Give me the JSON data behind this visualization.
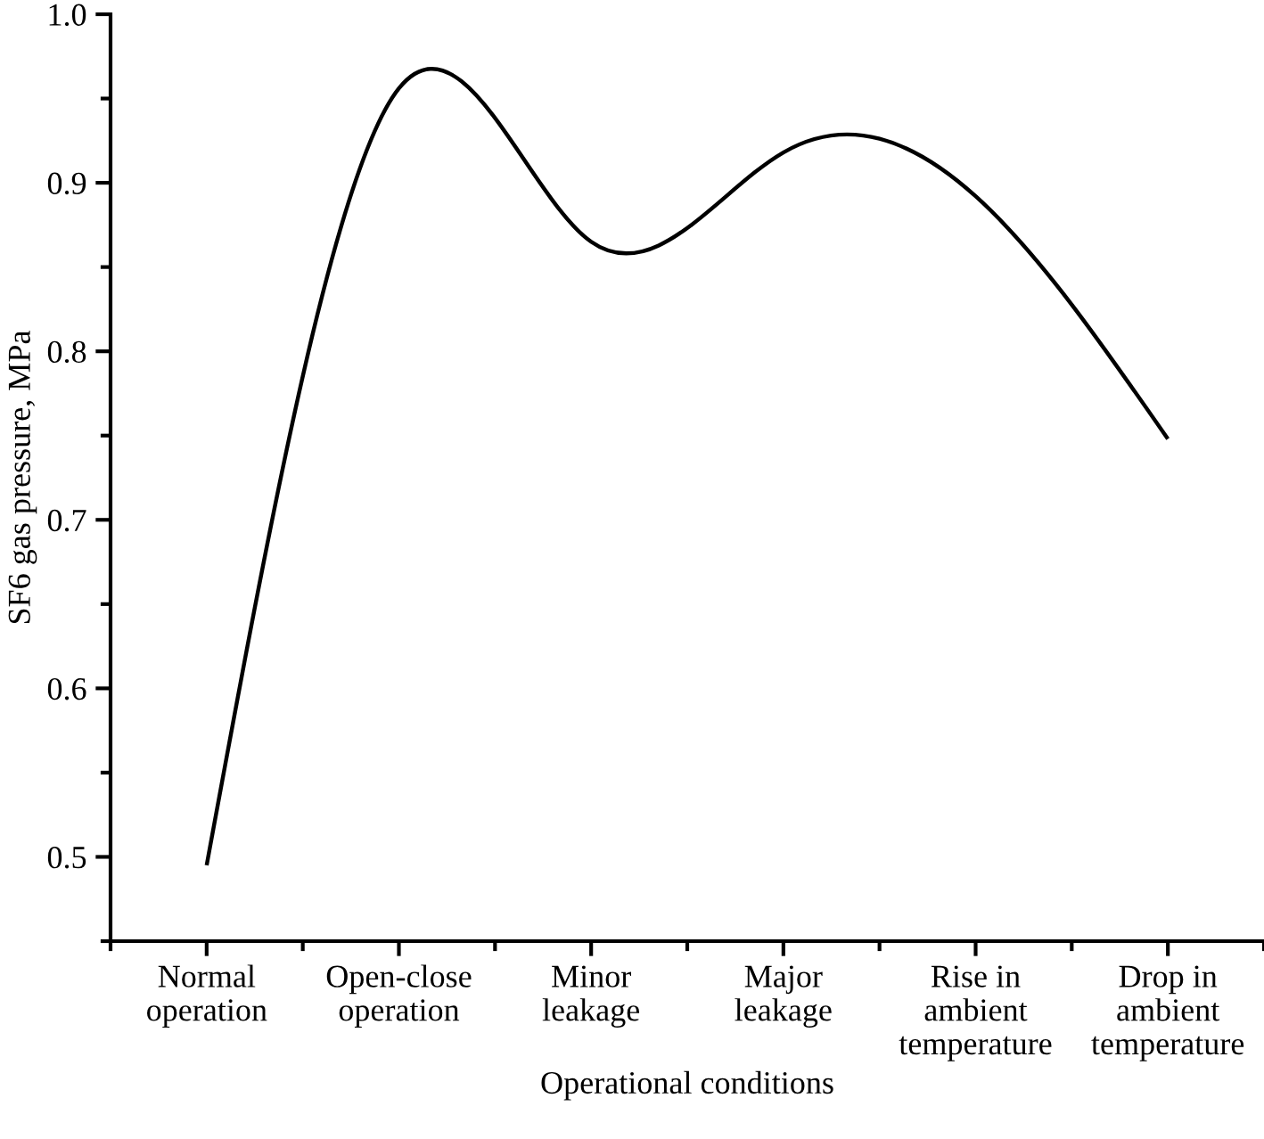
{
  "chart_data": {
    "type": "line",
    "xlabel": "Operational conditions",
    "ylabel": "SF6 gas pressure, MPa",
    "categories": [
      "Normal\noperation",
      "Open-close\noperation",
      "Minor\nleakage",
      "Major\nleakage",
      "Rise in\nambient\ntemperature",
      "Drop in\nambient\ntemperature"
    ],
    "series": [
      {
        "color": "#000000",
        "values": [
          0.495,
          0.956,
          0.865,
          0.918,
          0.892,
          0.748
        ]
      }
    ],
    "ylim": [
      0.45,
      1.0
    ],
    "yticks": [
      {
        "value": 0.45,
        "label": null
      },
      0.5,
      {
        "value": 0.55,
        "label": null
      },
      0.6,
      {
        "value": 0.65,
        "label": null
      },
      0.7,
      {
        "value": 0.75,
        "label": null
      },
      0.8,
      {
        "value": 0.85,
        "label": null
      },
      0.9,
      {
        "value": 0.95,
        "label": null
      },
      {
        "value": 1.0,
        "label": "1.0"
      }
    ],
    "grid": false,
    "legend": false,
    "marker": "none",
    "line_style": "solid"
  }
}
